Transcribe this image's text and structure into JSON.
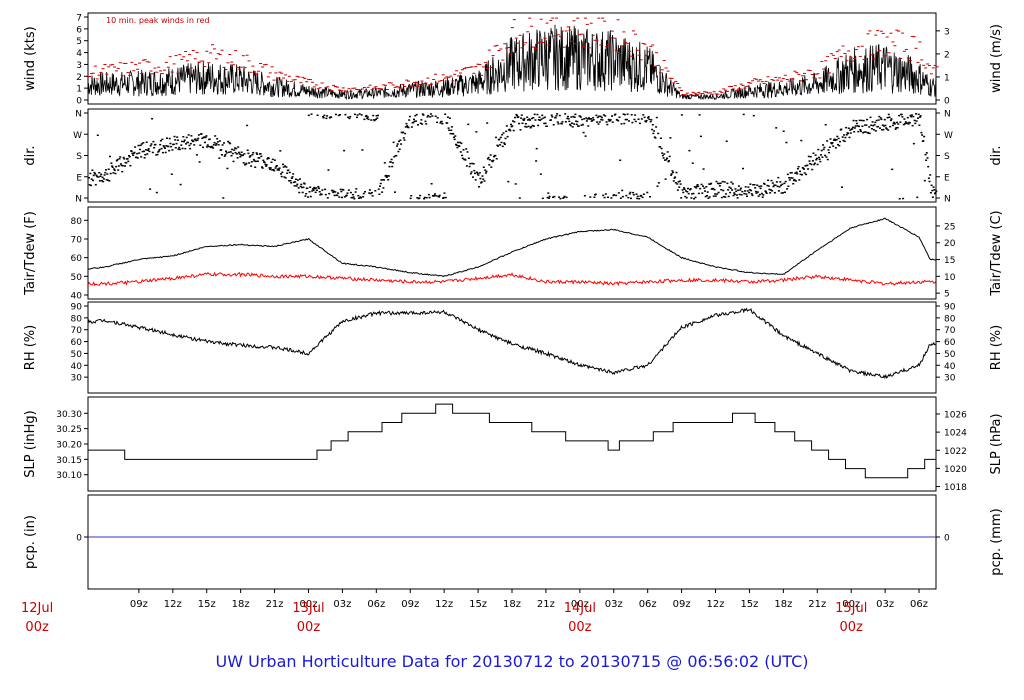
{
  "chart_data": [
    {
      "type": "line",
      "panel": "wind",
      "annotation": "10 min. peak winds in red",
      "ylabel_left": "wind (kts)",
      "ylabel_right": "wind (m/s)",
      "ylim": [
        0,
        7
      ],
      "left_ticks": [
        0,
        1,
        2,
        3,
        4,
        5,
        6,
        7
      ],
      "right_ticks": [
        0,
        1,
        2,
        3
      ],
      "x_hours": [
        0,
        3,
        6,
        9,
        12,
        15,
        18,
        21,
        24,
        27,
        30,
        33,
        36,
        39,
        42,
        45,
        48,
        51,
        54,
        57,
        60,
        63,
        66,
        69,
        72,
        75,
        78,
        79
      ],
      "series": [
        {
          "name": "wind",
          "color": "#000000",
          "values": [
            1.2,
            1.3,
            1.4,
            1.5,
            1.7,
            2.0,
            1.8,
            1.2,
            0.8,
            0.5,
            0.6,
            0.9,
            1.1,
            1.5,
            3.2,
            3.8,
            3.7,
            3.5,
            2.8,
            0.3,
            0.3,
            0.8,
            1.0,
            1.4,
            2.6,
            2.9,
            2.0,
            1.2
          ]
        },
        {
          "name": "peak",
          "color": "#cc0000",
          "values": [
            2.2,
            2.4,
            2.6,
            2.9,
            3.2,
            4.0,
            3.5,
            2.3,
            1.5,
            1.0,
            1.1,
            1.6,
            2.0,
            2.8,
            5.8,
            6.5,
            6.3,
            5.8,
            4.6,
            0.6,
            0.7,
            1.5,
            1.9,
            2.6,
            4.6,
            5.2,
            4.5,
            2.5
          ]
        }
      ]
    },
    {
      "type": "scatter",
      "panel": "direction",
      "ylabel_left": "dir.",
      "ylabel_right": "dir.",
      "left_ticks": [
        "N",
        "W",
        "S",
        "E",
        "N"
      ],
      "right_ticks": [
        "N",
        "W",
        "S",
        "E",
        "N"
      ],
      "ylim": [
        0,
        360
      ],
      "x_hours": [
        0,
        3,
        6,
        9,
        12,
        15,
        18,
        21,
        24,
        27,
        30,
        33,
        36,
        39,
        42,
        45,
        48,
        51,
        54,
        57,
        60,
        63,
        66,
        69,
        72,
        75,
        78,
        79
      ],
      "values": [
        45,
        70,
        100,
        200,
        230,
        250,
        180,
        150,
        20,
        10,
        5,
        345,
        350,
        70,
        320,
        335,
        340,
        350,
        355,
        20,
        40,
        30,
        60,
        180,
        300,
        320,
        345,
        40
      ]
    },
    {
      "type": "line",
      "panel": "temperature",
      "ylabel_left": "Tair/Tdew (F)",
      "ylabel_right": "Tair/Tdew (C)",
      "ylim": [
        40,
        85
      ],
      "left_ticks": [
        40,
        50,
        60,
        70,
        80
      ],
      "right_ticks": [
        5,
        10,
        15,
        20,
        25
      ],
      "x_hours": [
        0,
        3,
        6,
        9,
        12,
        15,
        18,
        21,
        24,
        27,
        30,
        33,
        36,
        39,
        42,
        45,
        48,
        51,
        54,
        57,
        60,
        63,
        66,
        69,
        72,
        75,
        78,
        79
      ],
      "series": [
        {
          "name": "Tair",
          "color": "#000000",
          "values": [
            56,
            53,
            55,
            59,
            61,
            66,
            67,
            66,
            70,
            57,
            55,
            52,
            50,
            55,
            63,
            70,
            74,
            75,
            71,
            60,
            55,
            52,
            51,
            64,
            76,
            81,
            71,
            59
          ]
        },
        {
          "name": "Tdew",
          "color": "#ff0000",
          "values": [
            47,
            46,
            46,
            47,
            49,
            51,
            51,
            50,
            50,
            49,
            48,
            47,
            47,
            49,
            51,
            47,
            47,
            46,
            47,
            48,
            48,
            47,
            48,
            50,
            48,
            46,
            47,
            47
          ]
        }
      ]
    },
    {
      "type": "line",
      "panel": "humidity",
      "ylabel_left": "RH (%)",
      "ylabel_right": "RH (%)",
      "ylim": [
        20,
        90
      ],
      "left_ticks": [
        30,
        40,
        50,
        60,
        70,
        80,
        90
      ],
      "right_ticks": [
        30,
        40,
        50,
        60,
        70,
        80,
        90
      ],
      "x_hours": [
        0,
        3,
        6,
        9,
        12,
        15,
        18,
        21,
        24,
        27,
        30,
        33,
        36,
        39,
        42,
        45,
        48,
        51,
        54,
        57,
        60,
        63,
        66,
        69,
        72,
        75,
        78,
        79
      ],
      "values": [
        70,
        75,
        78,
        72,
        66,
        60,
        57,
        55,
        50,
        77,
        84,
        84,
        85,
        70,
        58,
        50,
        40,
        34,
        40,
        72,
        82,
        87,
        65,
        50,
        35,
        30,
        40,
        58
      ]
    },
    {
      "type": "line",
      "panel": "pressure",
      "ylabel_left": "SLP (inHg)",
      "ylabel_right": "SLP (hPa)",
      "ylim": [
        30.06,
        30.34
      ],
      "left_ticks": [
        "30.10",
        "30.15",
        "30.20",
        "30.25",
        "30.30"
      ],
      "right_ticks": [
        1018,
        1020,
        1022,
        1024,
        1026
      ],
      "x_hours": [
        0,
        3,
        6,
        9,
        12,
        15,
        18,
        21,
        24,
        27,
        30,
        33,
        36,
        39,
        42,
        45,
        48,
        51,
        54,
        57,
        60,
        63,
        66,
        69,
        72,
        75,
        78,
        79
      ],
      "values": [
        30.18,
        30.18,
        30.18,
        30.15,
        30.15,
        30.15,
        30.15,
        30.15,
        30.15,
        30.22,
        30.25,
        30.3,
        30.32,
        30.29,
        30.27,
        30.24,
        30.21,
        30.19,
        30.22,
        30.27,
        30.28,
        30.29,
        30.24,
        30.18,
        30.12,
        30.08,
        30.12,
        30.15
      ]
    },
    {
      "type": "line",
      "panel": "precipitation",
      "ylabel_left": "pcp. (in)",
      "ylabel_right": "pcp. (mm)",
      "left_ticks": [
        0
      ],
      "right_ticks": [
        0
      ],
      "x_hours": [
        0,
        79
      ],
      "values": [
        0,
        0
      ]
    }
  ],
  "x_axis": {
    "hour_ticks": [
      "09z",
      "12z",
      "15z",
      "18z",
      "21z",
      "00z",
      "03z",
      "06z",
      "09z",
      "12z",
      "15z",
      "18z",
      "21z",
      "00z",
      "03z",
      "06z",
      "09z",
      "12z",
      "15z",
      "18z",
      "21z",
      "00z",
      "03z",
      "06z"
    ],
    "day_ticks": [
      {
        "date": "12Jul",
        "time": "00z"
      },
      {
        "date": "13Jul",
        "time": "00z"
      },
      {
        "date": "14Jul",
        "time": "00z"
      },
      {
        "date": "15Jul",
        "time": "00z"
      }
    ]
  },
  "footer": {
    "title": "UW Urban Horticulture Data for 20130712  to  20130715 @ 06:56:02  (UTC)"
  },
  "colors": {
    "peak": "#cc0000",
    "date_label": "#cc0000",
    "footer": "#1a1ad8",
    "precip_line": "#3333cc"
  }
}
